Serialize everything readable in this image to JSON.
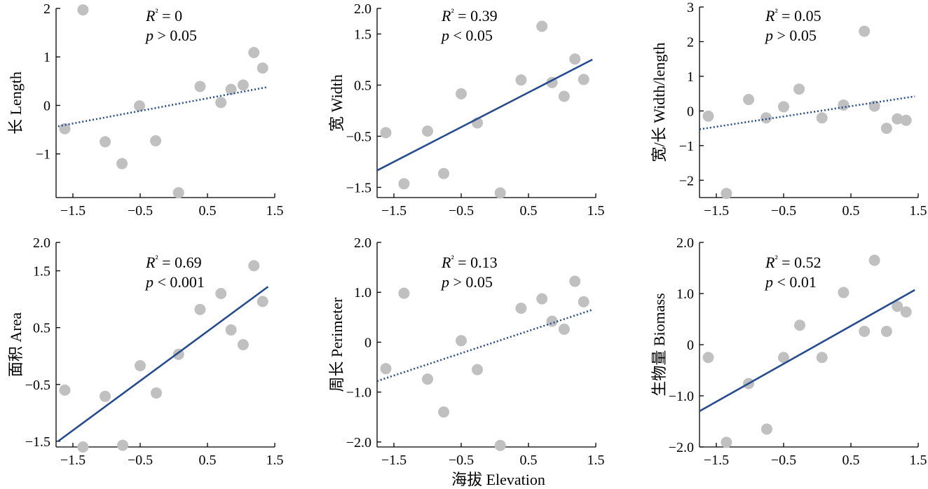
{
  "figure": {
    "xlabel": "海拔 Elevation"
  },
  "colors": {
    "points": "#c0c0c0",
    "line": "#264c8f",
    "axis": "#000000"
  },
  "chart_data": [
    {
      "type": "scatter",
      "ylabel": "长 Length",
      "stat": {
        "r2_label": "R² = 0",
        "p_label": "p > 0.05"
      },
      "xlim": [
        -1.75,
        1.5
      ],
      "ylim": [
        -1.9,
        2.0
      ],
      "xticks": [
        -1.5,
        -0.5,
        0.5,
        1.5
      ],
      "xtick_labels": [
        "−1.5",
        "−0.5",
        "0.5",
        "1.5"
      ],
      "yticks": [
        -1,
        0,
        1,
        2
      ],
      "ytick_labels": [
        "−1",
        "0",
        "1",
        "2"
      ],
      "points": [
        [
          -1.62,
          -0.48
        ],
        [
          -1.35,
          1.97
        ],
        [
          -1.02,
          -0.75
        ],
        [
          -0.77,
          -1.2
        ],
        [
          -0.51,
          -0.01
        ],
        [
          -0.27,
          -0.73
        ],
        [
          0.07,
          -1.8
        ],
        [
          0.39,
          0.39
        ],
        [
          0.7,
          0.06
        ],
        [
          0.85,
          0.33
        ],
        [
          1.03,
          0.42
        ],
        [
          1.19,
          1.09
        ],
        [
          1.32,
          0.77
        ]
      ],
      "fit": {
        "style": "dotted",
        "x": [
          -1.72,
          1.4
        ],
        "y": [
          -0.43,
          0.38
        ]
      }
    },
    {
      "type": "scatter",
      "ylabel": "宽 Width",
      "stat": {
        "r2_label": "R² = 0.39",
        "p_label": "p < 0.05"
      },
      "xlim": [
        -1.75,
        1.5
      ],
      "ylim": [
        -1.7,
        2.0
      ],
      "xticks": [
        -1.5,
        -0.5,
        0.5,
        1.5
      ],
      "xtick_labels": [
        "−1.5",
        "−0.5",
        "0.5",
        "1.5"
      ],
      "yticks": [
        -1.5,
        -0.5,
        0.5,
        1.5,
        2.0
      ],
      "ytick_labels": [
        "−1.5",
        "−0.5",
        "0.5",
        "1.5",
        "2.0"
      ],
      "points": [
        [
          -1.62,
          -0.43
        ],
        [
          -1.35,
          -1.43
        ],
        [
          -1.0,
          -0.4
        ],
        [
          -0.76,
          -1.23
        ],
        [
          -0.5,
          0.33
        ],
        [
          -0.26,
          -0.24
        ],
        [
          0.08,
          -1.61
        ],
        [
          0.39,
          0.6
        ],
        [
          0.7,
          1.65
        ],
        [
          0.85,
          0.55
        ],
        [
          1.03,
          0.28
        ],
        [
          1.19,
          1.01
        ],
        [
          1.32,
          0.61
        ]
      ],
      "fit": {
        "style": "solid",
        "x": [
          -1.75,
          1.45
        ],
        "y": [
          -1.17,
          1.0
        ]
      }
    },
    {
      "type": "scatter",
      "ylabel": "宽/长 Width/length",
      "stat": {
        "r2_label": "R² = 0.05",
        "p_label": "p > 0.05"
      },
      "xlim": [
        -1.75,
        1.5
      ],
      "ylim": [
        -2.5,
        3.0
      ],
      "xticks": [
        -1.5,
        -0.5,
        0.5,
        1.5
      ],
      "xtick_labels": [
        "−1.5",
        "−0.5",
        "0.5",
        "1.5"
      ],
      "yticks": [
        -2,
        -1,
        0,
        1,
        2,
        3
      ],
      "ytick_labels": [
        "−2",
        "−1",
        "0",
        "1",
        "2",
        "3"
      ],
      "points": [
        [
          -1.62,
          -0.15
        ],
        [
          -1.35,
          -2.38
        ],
        [
          -1.02,
          0.33
        ],
        [
          -0.76,
          -0.2
        ],
        [
          -0.5,
          0.12
        ],
        [
          -0.27,
          0.63
        ],
        [
          0.07,
          -0.2
        ],
        [
          0.39,
          0.17
        ],
        [
          0.7,
          2.3
        ],
        [
          0.85,
          0.14
        ],
        [
          1.03,
          -0.5
        ],
        [
          1.19,
          -0.23
        ],
        [
          1.32,
          -0.27
        ]
      ],
      "fit": {
        "style": "dotted",
        "x": [
          -1.75,
          1.45
        ],
        "y": [
          -0.53,
          0.42
        ]
      }
    },
    {
      "type": "scatter",
      "ylabel": "面积 Area",
      "stat": {
        "r2_label": "R² = 0.69",
        "p_label": "p < 0.001"
      },
      "xlim": [
        -1.75,
        1.5
      ],
      "ylim": [
        -1.6,
        2.0
      ],
      "xticks": [
        -1.5,
        -0.5,
        0.5,
        1.5
      ],
      "xtick_labels": [
        "−1.5",
        "−0.5",
        "0.5",
        "1.5"
      ],
      "yticks": [
        -1.5,
        -0.5,
        0.5,
        1.5,
        2.0
      ],
      "ytick_labels": [
        "−1.5",
        "−0.5",
        "0.5",
        "1.5",
        "2.0"
      ],
      "points": [
        [
          -1.62,
          -0.6
        ],
        [
          -1.35,
          -1.6
        ],
        [
          -1.02,
          -0.71
        ],
        [
          -0.76,
          -1.57
        ],
        [
          -0.5,
          -0.17
        ],
        [
          -0.26,
          -0.65
        ],
        [
          0.07,
          0.03
        ],
        [
          0.39,
          0.82
        ],
        [
          0.7,
          1.1
        ],
        [
          0.85,
          0.46
        ],
        [
          1.03,
          0.2
        ],
        [
          1.19,
          1.59
        ],
        [
          1.32,
          0.96
        ]
      ],
      "fit": {
        "style": "solid",
        "x": [
          -1.72,
          1.4
        ],
        "y": [
          -1.5,
          1.22
        ]
      }
    },
    {
      "type": "scatter",
      "ylabel": "周长 Perimeter",
      "stat": {
        "r2_label": "R² = 0.13",
        "p_label": "p > 0.05"
      },
      "xlim": [
        -1.75,
        1.5
      ],
      "ylim": [
        -2.1,
        2.0
      ],
      "xticks": [
        -1.5,
        -0.5,
        0.5,
        1.5
      ],
      "xtick_labels": [
        "−1.5",
        "−0.5",
        "0.5",
        "1.5"
      ],
      "yticks": [
        -2,
        -1,
        0,
        1,
        2
      ],
      "ytick_labels": [
        "−2.0",
        "−1.0",
        "0",
        "1.0",
        "2.0"
      ],
      "points": [
        [
          -1.62,
          -0.53
        ],
        [
          -1.35,
          0.98
        ],
        [
          -1.0,
          -0.74
        ],
        [
          -0.76,
          -1.4
        ],
        [
          -0.5,
          0.03
        ],
        [
          -0.26,
          -0.55
        ],
        [
          0.08,
          -2.07
        ],
        [
          0.39,
          0.68
        ],
        [
          0.7,
          0.87
        ],
        [
          0.85,
          0.42
        ],
        [
          1.03,
          0.26
        ],
        [
          1.19,
          1.22
        ],
        [
          1.32,
          0.81
        ]
      ],
      "fit": {
        "style": "dotted",
        "x": [
          -1.75,
          1.45
        ],
        "y": [
          -0.78,
          0.65
        ]
      }
    },
    {
      "type": "scatter",
      "ylabel": "生物量 Biomass",
      "stat": {
        "r2_label": "R² = 0.52",
        "p_label": "p < 0.01"
      },
      "xlim": [
        -1.75,
        1.5
      ],
      "ylim": [
        -2.0,
        2.0
      ],
      "xticks": [
        -1.5,
        -0.5,
        0.5,
        1.5
      ],
      "xtick_labels": [
        "−1.5",
        "−0.5",
        "0.5",
        "1.5"
      ],
      "yticks": [
        -2,
        -1,
        0,
        1,
        2
      ],
      "ytick_labels": [
        "−2.0",
        "−1.0",
        "0",
        "1.0",
        "2.0"
      ],
      "points": [
        [
          -1.62,
          -0.25
        ],
        [
          -1.35,
          -1.91
        ],
        [
          -1.02,
          -0.76
        ],
        [
          -0.75,
          -1.65
        ],
        [
          -0.5,
          -0.25
        ],
        [
          -0.26,
          0.38
        ],
        [
          0.07,
          -0.25
        ],
        [
          0.39,
          1.02
        ],
        [
          0.7,
          0.26
        ],
        [
          0.85,
          1.65
        ],
        [
          1.03,
          0.26
        ],
        [
          1.19,
          0.75
        ],
        [
          1.32,
          0.64
        ]
      ],
      "fit": {
        "style": "solid",
        "x": [
          -1.75,
          1.45
        ],
        "y": [
          -1.3,
          1.07
        ]
      }
    }
  ]
}
